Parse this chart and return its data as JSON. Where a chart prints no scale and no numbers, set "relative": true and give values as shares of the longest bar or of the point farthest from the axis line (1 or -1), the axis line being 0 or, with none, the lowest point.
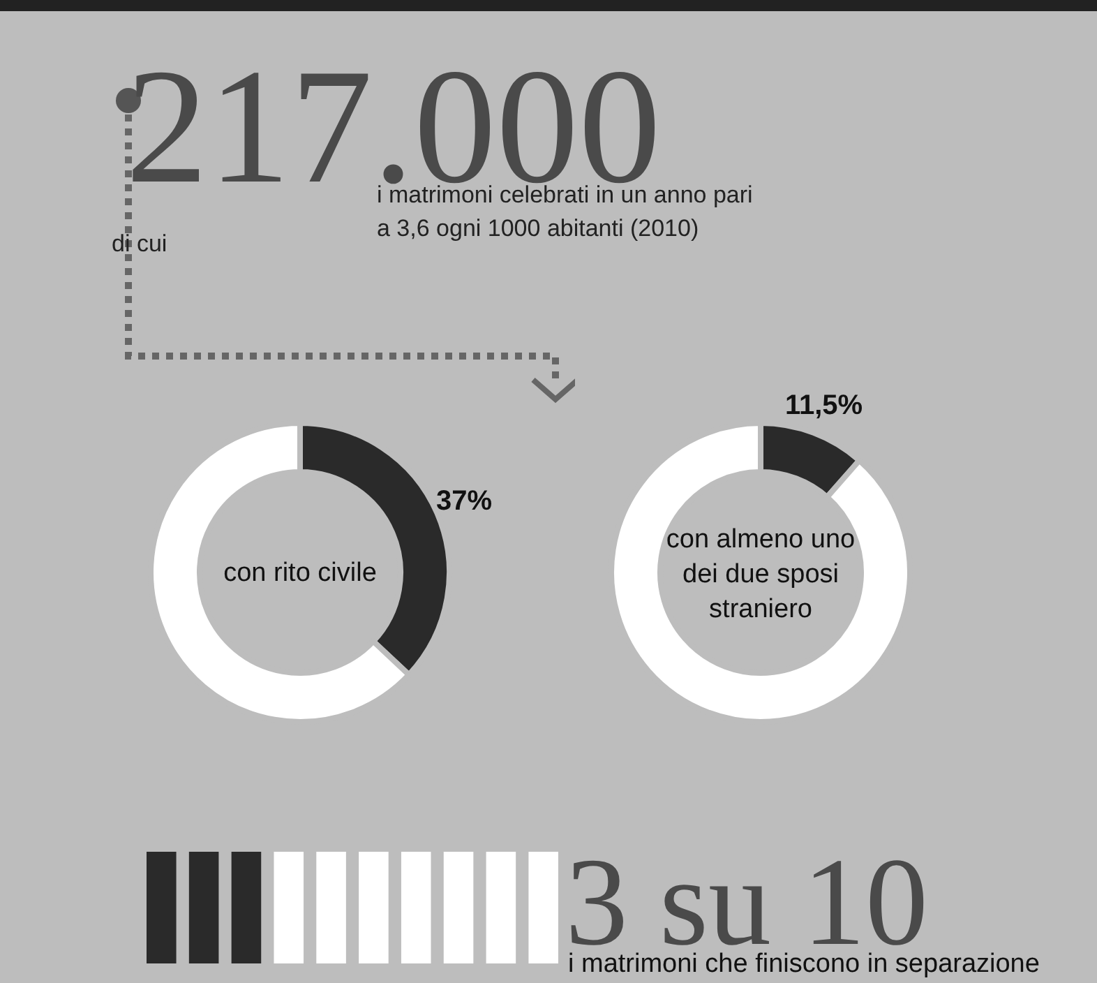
{
  "chart_data": [
    {
      "type": "other",
      "title": "217.000",
      "annotations": [
        "i matrimoni celebrati in un anno pari a 3,6 ogni 1000 abitanti (2010)",
        "di cui"
      ]
    },
    {
      "type": "donut",
      "title": "con rito civile",
      "categories": [
        null,
        null
      ],
      "values": [
        37,
        63
      ],
      "colors": [
        "#2a2a2a",
        "#ffffff"
      ],
      "value_labels": [
        "37%",
        null
      ]
    },
    {
      "type": "donut",
      "title": "con almeno uno dei due sposi straniero",
      "categories": [
        null,
        null
      ],
      "values": [
        11.5,
        88.5
      ],
      "colors": [
        "#2a2a2a",
        "#ffffff"
      ],
      "value_labels": [
        "11,5%",
        null
      ]
    },
    {
      "type": "bar",
      "relative": true,
      "title": "3 su 10",
      "annotations": [
        "i matrimoni che finiscono in separazione"
      ],
      "categories": [
        null,
        null,
        null,
        null,
        null,
        null,
        null,
        null,
        null,
        null
      ],
      "values": [
        1,
        1,
        1,
        1,
        1,
        1,
        1,
        1,
        1,
        1
      ],
      "colors": [
        "#2a2a2a",
        "#2a2a2a",
        "#2a2a2a",
        "#ffffff",
        "#ffffff",
        "#ffffff",
        "#ffffff",
        "#ffffff",
        "#ffffff",
        "#ffffff"
      ]
    }
  ]
}
